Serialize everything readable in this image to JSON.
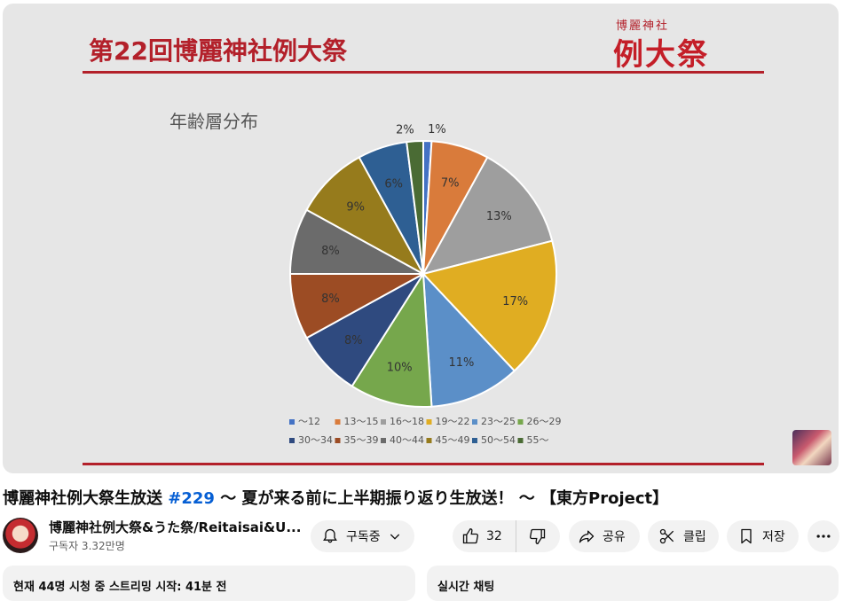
{
  "slide": {
    "title": "第22回博麗神社例大祭",
    "logo_small": "博麗神社",
    "logo_big": "例大祭",
    "accent_color": "#b3202a"
  },
  "chart_data": {
    "type": "pie",
    "title": "年齢層分布",
    "categories": [
      "～12",
      "13～15",
      "16～18",
      "19～22",
      "23～25",
      "26～29",
      "30～34",
      "35～39",
      "40～44",
      "45～49",
      "50～54",
      "55～"
    ],
    "values": [
      1,
      7,
      13,
      17,
      11,
      10,
      8,
      8,
      8,
      9,
      6,
      2
    ],
    "labels": [
      "1%",
      "7%",
      "13%",
      "17%",
      "11%",
      "10%",
      "8%",
      "8%",
      "8%",
      "9%",
      "6%",
      "2%"
    ],
    "colors": [
      "#4472c4",
      "#d97b3b",
      "#9e9e9e",
      "#e0ad22",
      "#5b8fc8",
      "#76a74c",
      "#2f4a7f",
      "#9c4c24",
      "#6b6b6b",
      "#967b1c",
      "#2e5f93",
      "#4a6b34"
    ],
    "legend_position": "bottom"
  },
  "video": {
    "title_prefix": "博麗神社例大祭生放送",
    "title_tag": "#229",
    "title_suffix": "～ 夏が来る前に上半期振り返り生放送！ ～ 【東方Project】",
    "channel_name": "博麗神社例大祭&うた祭/Reitaisai&U...",
    "subscribers": "구독자 3.32만명",
    "subscribe_label": "구독중",
    "like_count": "32",
    "share_label": "공유",
    "clip_label": "클립",
    "save_label": "저장",
    "description_meta": "현재 44명 시청 중  스트리밍 시작: 41분 전",
    "chat_title": "실시간 채팅"
  }
}
